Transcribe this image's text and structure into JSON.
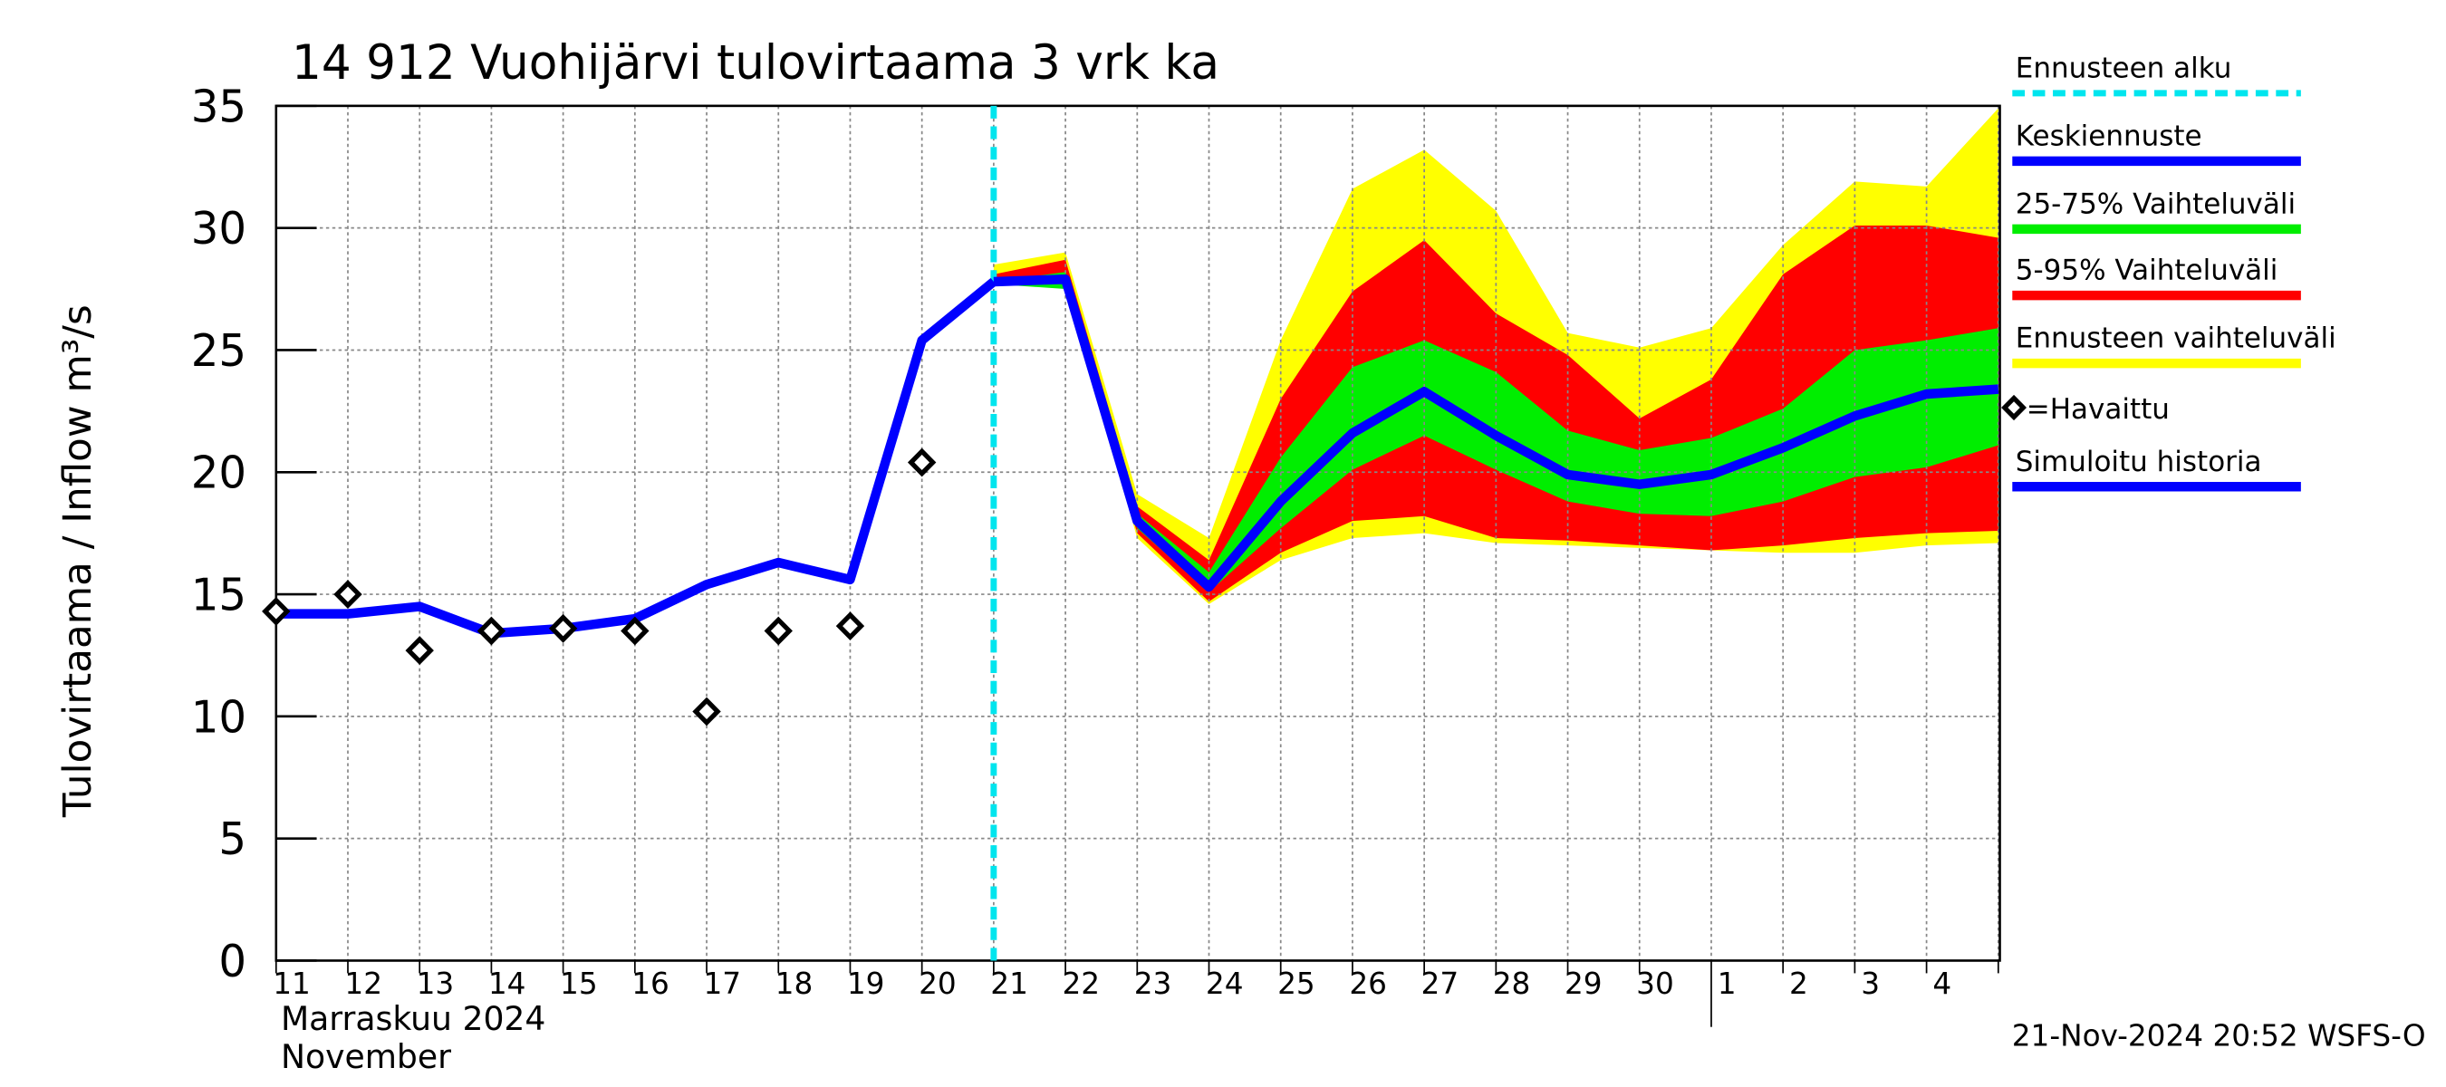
{
  "chart_data": {
    "type": "line",
    "title": "14 912 Vuohijärvi tulovirtaama 3 vrk ka",
    "ylabel": "Tulovirtaama / Inflow    m³/s",
    "categories": [
      "11",
      "12",
      "13",
      "14",
      "15",
      "16",
      "17",
      "18",
      "19",
      "20",
      "21",
      "22",
      "23",
      "24",
      "25",
      "26",
      "27",
      "28",
      "29",
      "30",
      "1",
      "2",
      "3",
      "4",
      null
    ],
    "month_labels": [
      "Marraskuu 2024",
      "November"
    ],
    "footer": "21-Nov-2024 20:52 WSFS-O",
    "ylim": [
      0,
      35
    ],
    "yticks": [
      0,
      5,
      10,
      15,
      20,
      25,
      30,
      35
    ],
    "grid": true,
    "series": [
      {
        "name": "Ennusteen alku",
        "kind": "vline",
        "color": "#00e5ee",
        "x": "21"
      },
      {
        "name": "Keskiennuste",
        "kind": "line",
        "color": "#0000ff",
        "values": [
          null,
          null,
          null,
          null,
          null,
          null,
          null,
          null,
          null,
          null,
          27.8,
          27.9,
          18.0,
          15.3,
          18.8,
          21.6,
          23.3,
          21.5,
          19.9,
          19.5,
          19.9,
          21.0,
          22.3,
          23.2,
          23.4
        ]
      },
      {
        "name": "25-75% Vaihteluväli",
        "kind": "band",
        "color": "#00ee00",
        "upper": [
          null,
          null,
          null,
          null,
          null,
          null,
          null,
          null,
          null,
          null,
          27.8,
          28.2,
          18.3,
          15.9,
          20.6,
          24.3,
          25.4,
          24.1,
          21.7,
          20.9,
          21.4,
          22.6,
          25.0,
          25.4,
          25.9
        ],
        "lower": [
          null,
          null,
          null,
          null,
          null,
          null,
          null,
          null,
          null,
          null,
          27.7,
          27.5,
          17.7,
          15.1,
          17.7,
          20.1,
          21.5,
          20.1,
          18.8,
          18.3,
          18.2,
          18.8,
          19.8,
          20.2,
          21.1
        ]
      },
      {
        "name": "5-95% Vaihteluväli",
        "kind": "band",
        "color": "#ff0000",
        "upper": [
          null,
          null,
          null,
          null,
          null,
          null,
          null,
          null,
          null,
          null,
          28.1,
          28.7,
          18.6,
          16.4,
          23.0,
          27.4,
          29.5,
          26.5,
          24.8,
          22.2,
          23.8,
          28.1,
          30.1,
          30.1,
          29.6
        ],
        "lower": [
          null,
          null,
          null,
          null,
          null,
          null,
          null,
          null,
          null,
          null,
          27.7,
          27.7,
          17.5,
          14.7,
          16.7,
          18.0,
          18.2,
          17.3,
          17.2,
          17.0,
          16.8,
          17.0,
          17.3,
          17.5,
          17.6
        ]
      },
      {
        "name": "Ennusteen vaihteluväli",
        "kind": "band",
        "color": "#ffff00",
        "upper": [
          null,
          null,
          null,
          null,
          null,
          null,
          null,
          null,
          null,
          null,
          28.5,
          29.0,
          19.1,
          17.3,
          25.4,
          31.6,
          33.2,
          30.7,
          25.7,
          25.1,
          25.9,
          29.3,
          31.9,
          31.7,
          34.9
        ],
        "lower": [
          null,
          null,
          null,
          null,
          null,
          null,
          null,
          null,
          null,
          null,
          27.7,
          27.7,
          17.3,
          14.6,
          16.4,
          17.3,
          17.5,
          17.1,
          17.0,
          16.9,
          16.8,
          16.7,
          16.7,
          17.0,
          17.1
        ]
      },
      {
        "name": "=Havaittu",
        "kind": "scatter",
        "color": "#000000",
        "values": [
          14.3,
          15.0,
          12.7,
          13.5,
          13.6,
          13.5,
          10.2,
          13.5,
          13.7,
          20.4,
          null,
          null,
          null,
          null,
          null,
          null,
          null,
          null,
          null,
          null,
          null,
          null,
          null,
          null,
          null
        ]
      },
      {
        "name": "Simuloitu historia",
        "kind": "line",
        "color": "#0000ff",
        "values": [
          14.2,
          14.2,
          14.5,
          13.4,
          13.6,
          14.0,
          15.4,
          16.3,
          15.6,
          25.4,
          27.8,
          null,
          null,
          null,
          null,
          null,
          null,
          null,
          null,
          null,
          null,
          null,
          null,
          null,
          null
        ]
      }
    ]
  }
}
